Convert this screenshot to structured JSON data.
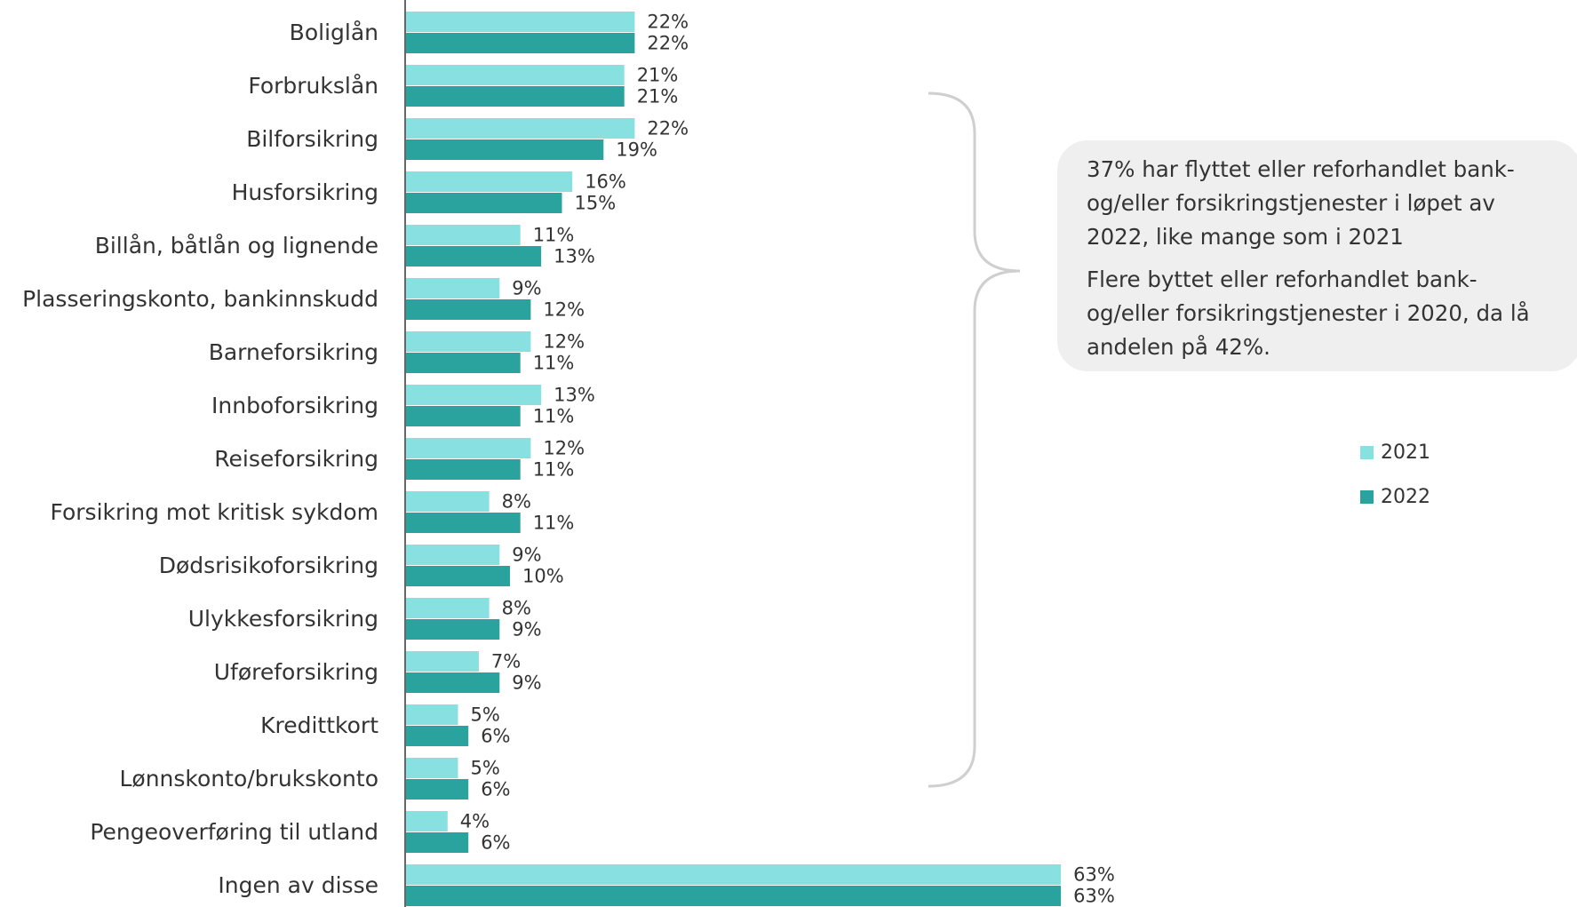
{
  "chart_data": {
    "type": "bar",
    "orientation": "horizontal",
    "categories": [
      "Boliglån",
      "Forbrukslån",
      "Bilforsikring",
      "Husforsikring",
      "Billån, båtlån og lignende",
      "Plasseringskonto, bankinnskudd",
      "Barneforsikring",
      "Innboforsikring",
      "Reiseforsikring",
      "Forsikring mot kritisk sykdom",
      "Dødsrisikoforsikring",
      "Ulykkesforsikring",
      "Uføreforsikring",
      "Kredittkort",
      "Lønnskonto/brukskonto",
      "Pengeoverføring til utland",
      "Ingen  av disse"
    ],
    "series": [
      {
        "name": "2021",
        "color": "#89e0e0",
        "values": [
          22,
          21,
          22,
          16,
          11,
          9,
          12,
          13,
          12,
          8,
          9,
          8,
          7,
          5,
          5,
          4,
          63
        ]
      },
      {
        "name": "2022",
        "color": "#2aa39e",
        "values": [
          22,
          21,
          19,
          15,
          13,
          12,
          11,
          11,
          11,
          11,
          10,
          9,
          9,
          6,
          6,
          6,
          63
        ]
      }
    ],
    "value_suffix": "%",
    "grid": false,
    "legend_position": "right"
  },
  "callout": {
    "paragraphs": [
      "37% har flyttet eller reforhandlet bank- og/eller forsikringstjenester i løpet av 2022, like mange som i 2021",
      "Flere byttet eller reforhandlet bank- og/eller forsikringstjenester i 2020, da lå andelen på 42%."
    ]
  },
  "legend": [
    {
      "label": "2021",
      "color": "#89e0e0"
    },
    {
      "label": "2022",
      "color": "#2aa39e"
    }
  ]
}
